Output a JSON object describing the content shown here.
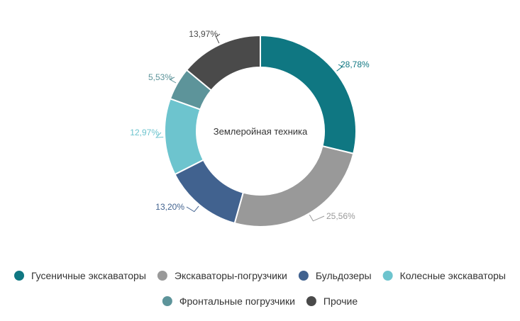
{
  "chart_data": {
    "type": "pie",
    "variant": "donut",
    "center_label": "Землеройная техника",
    "slices": [
      {
        "name": "Гусеничные экскаваторы",
        "value": 28.78,
        "label": "28,78%",
        "color": "#0f7782"
      },
      {
        "name": "Экскаваторы-погрузчики",
        "value": 25.56,
        "label": "25,56%",
        "color": "#999999"
      },
      {
        "name": "Бульдозеры",
        "value": 13.2,
        "label": "13,20%",
        "color": "#41628f"
      },
      {
        "name": "Колесные экскаваторы",
        "value": 12.97,
        "label": "12,97%",
        "color": "#6dc4ce"
      },
      {
        "name": "Фронтальные погрузчики",
        "value": 5.53,
        "label": "5,53%",
        "color": "#5d949a"
      },
      {
        "name": "Прочие",
        "value": 13.97,
        "label": "13,97%",
        "color": "#4a4a4a"
      }
    ],
    "legend_position": "bottom"
  }
}
